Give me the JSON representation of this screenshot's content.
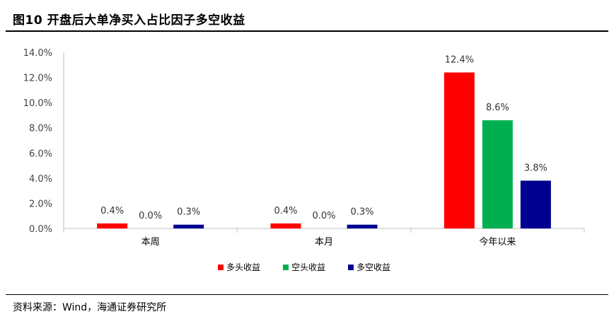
{
  "figure": {
    "title": "图10 开盘后大单净买入占比因子多空收益",
    "source": "资料来源：Wind，海通证券研究所"
  },
  "chart_data": {
    "type": "bar",
    "categories": [
      "本周",
      "本月",
      "今年以来"
    ],
    "series": [
      {
        "name": "多头收益",
        "color": "#ff0000",
        "values": [
          0.4,
          0.4,
          12.4
        ],
        "labels": [
          "0.4%",
          "0.4%",
          "12.4%"
        ]
      },
      {
        "name": "空头收益",
        "color": "#00b050",
        "values": [
          0.0,
          0.0,
          8.6
        ],
        "labels": [
          "0.0%",
          "0.0%",
          "8.6%"
        ]
      },
      {
        "name": "多空收益",
        "color": "#000090",
        "values": [
          0.3,
          0.3,
          3.8
        ],
        "labels": [
          "0.3%",
          "0.3%",
          "3.8%"
        ]
      }
    ],
    "ylim": [
      0,
      14
    ],
    "yticks": [
      0,
      2,
      4,
      6,
      8,
      10,
      12,
      14
    ],
    "ytick_labels": [
      "0.0%",
      "2.0%",
      "4.0%",
      "6.0%",
      "8.0%",
      "10.0%",
      "12.0%",
      "14.0%"
    ],
    "legend_position": "bottom",
    "grid": false
  }
}
